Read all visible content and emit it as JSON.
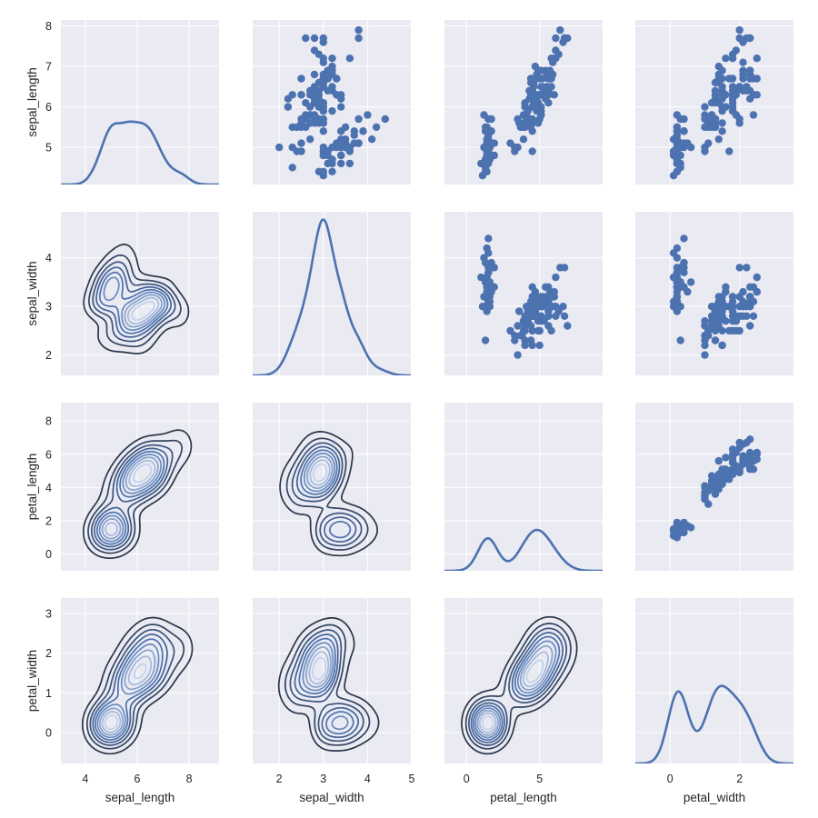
{
  "chart_data": {
    "type": "pairplot",
    "upper": "scatter",
    "diag": "kde",
    "lower": "kde-contour",
    "grid": true,
    "colors": {
      "background": "#eaeaf2",
      "grid": "#ffffff",
      "points": "#4c72b0",
      "diag_line": "#4c72b0",
      "contour_low": "#2b3648",
      "contour_mid": "#4c72b0",
      "contour_high": "#c2d2ea"
    },
    "variables": [
      "sepal_length",
      "sepal_width",
      "petal_length",
      "petal_width"
    ],
    "axes": [
      {
        "name": "sepal_length",
        "xlim": [
          3.06,
          9.15
        ],
        "ylim": [
          4.08,
          8.15
        ],
        "xticks": [
          4,
          6,
          8
        ],
        "yticks": [
          5,
          6,
          7,
          8
        ]
      },
      {
        "name": "sepal_width",
        "xlim": [
          1.4,
          4.98
        ],
        "ylim": [
          1.58,
          4.95
        ],
        "xticks": [
          2,
          3,
          4,
          5
        ],
        "yticks": [
          2,
          3,
          4
        ]
      },
      {
        "name": "petal_length",
        "xlim": [
          -1.5,
          9.3
        ],
        "ylim": [
          -1.0,
          9.1
        ],
        "xticks": [
          0,
          5
        ],
        "yticks": [
          0,
          2,
          4,
          6,
          8
        ]
      },
      {
        "name": "petal_width",
        "xlim": [
          -1.0,
          3.55
        ],
        "ylim": [
          -0.78,
          3.39
        ],
        "xticks": [
          0,
          2
        ],
        "yticks": [
          0,
          1,
          2,
          3
        ]
      }
    ],
    "rows": [
      [
        5.1,
        3.5,
        1.4,
        0.2
      ],
      [
        4.9,
        3.0,
        1.4,
        0.2
      ],
      [
        4.7,
        3.2,
        1.3,
        0.2
      ],
      [
        4.6,
        3.1,
        1.5,
        0.2
      ],
      [
        5.0,
        3.6,
        1.4,
        0.2
      ],
      [
        5.4,
        3.9,
        1.7,
        0.4
      ],
      [
        4.6,
        3.4,
        1.4,
        0.3
      ],
      [
        5.0,
        3.4,
        1.5,
        0.2
      ],
      [
        4.4,
        2.9,
        1.4,
        0.2
      ],
      [
        4.9,
        3.1,
        1.5,
        0.1
      ],
      [
        5.4,
        3.7,
        1.5,
        0.2
      ],
      [
        4.8,
        3.4,
        1.6,
        0.2
      ],
      [
        4.8,
        3.0,
        1.4,
        0.1
      ],
      [
        4.3,
        3.0,
        1.1,
        0.1
      ],
      [
        5.8,
        4.0,
        1.2,
        0.2
      ],
      [
        5.7,
        4.4,
        1.5,
        0.4
      ],
      [
        5.4,
        3.9,
        1.3,
        0.4
      ],
      [
        5.1,
        3.5,
        1.4,
        0.3
      ],
      [
        5.7,
        3.8,
        1.7,
        0.3
      ],
      [
        5.1,
        3.8,
        1.5,
        0.3
      ],
      [
        5.4,
        3.4,
        1.7,
        0.2
      ],
      [
        5.1,
        3.7,
        1.5,
        0.4
      ],
      [
        4.6,
        3.6,
        1.0,
        0.2
      ],
      [
        5.1,
        3.3,
        1.7,
        0.5
      ],
      [
        4.8,
        3.4,
        1.9,
        0.2
      ],
      [
        5.0,
        3.0,
        1.6,
        0.2
      ],
      [
        5.0,
        3.4,
        1.6,
        0.4
      ],
      [
        5.2,
        3.5,
        1.5,
        0.2
      ],
      [
        5.2,
        3.4,
        1.4,
        0.2
      ],
      [
        4.7,
        3.2,
        1.6,
        0.2
      ],
      [
        4.8,
        3.1,
        1.6,
        0.2
      ],
      [
        5.4,
        3.4,
        1.5,
        0.4
      ],
      [
        5.2,
        4.1,
        1.5,
        0.1
      ],
      [
        5.5,
        4.2,
        1.4,
        0.2
      ],
      [
        4.9,
        3.1,
        1.5,
        0.2
      ],
      [
        5.0,
        3.2,
        1.2,
        0.2
      ],
      [
        5.5,
        3.5,
        1.3,
        0.2
      ],
      [
        4.9,
        3.6,
        1.4,
        0.1
      ],
      [
        4.4,
        3.0,
        1.3,
        0.2
      ],
      [
        5.1,
        3.4,
        1.5,
        0.2
      ],
      [
        5.0,
        3.5,
        1.3,
        0.3
      ],
      [
        4.5,
        2.3,
        1.3,
        0.3
      ],
      [
        4.4,
        3.2,
        1.3,
        0.2
      ],
      [
        5.0,
        3.5,
        1.6,
        0.6
      ],
      [
        5.1,
        3.8,
        1.9,
        0.4
      ],
      [
        4.8,
        3.0,
        1.4,
        0.3
      ],
      [
        5.1,
        3.8,
        1.6,
        0.2
      ],
      [
        4.6,
        3.2,
        1.4,
        0.2
      ],
      [
        5.3,
        3.7,
        1.5,
        0.2
      ],
      [
        5.0,
        3.3,
        1.4,
        0.2
      ],
      [
        7.0,
        3.2,
        4.7,
        1.4
      ],
      [
        6.4,
        3.2,
        4.5,
        1.5
      ],
      [
        6.9,
        3.1,
        4.9,
        1.5
      ],
      [
        5.5,
        2.3,
        4.0,
        1.3
      ],
      [
        6.5,
        2.8,
        4.6,
        1.5
      ],
      [
        5.7,
        2.8,
        4.5,
        1.3
      ],
      [
        6.3,
        3.3,
        4.7,
        1.6
      ],
      [
        4.9,
        2.4,
        3.3,
        1.0
      ],
      [
        6.6,
        2.9,
        4.6,
        1.3
      ],
      [
        5.2,
        2.7,
        3.9,
        1.4
      ],
      [
        5.0,
        2.0,
        3.5,
        1.0
      ],
      [
        5.9,
        3.0,
        4.2,
        1.5
      ],
      [
        6.0,
        2.2,
        4.0,
        1.0
      ],
      [
        6.1,
        2.9,
        4.7,
        1.4
      ],
      [
        5.6,
        2.9,
        3.6,
        1.3
      ],
      [
        6.7,
        3.1,
        4.4,
        1.4
      ],
      [
        5.6,
        3.0,
        4.5,
        1.5
      ],
      [
        5.8,
        2.7,
        4.1,
        1.0
      ],
      [
        6.2,
        2.2,
        4.5,
        1.5
      ],
      [
        5.6,
        2.5,
        3.9,
        1.1
      ],
      [
        5.9,
        3.2,
        4.8,
        1.8
      ],
      [
        6.1,
        2.8,
        4.0,
        1.3
      ],
      [
        6.3,
        2.5,
        4.9,
        1.5
      ],
      [
        6.1,
        2.8,
        4.7,
        1.2
      ],
      [
        6.4,
        2.9,
        4.3,
        1.3
      ],
      [
        6.6,
        3.0,
        4.4,
        1.4
      ],
      [
        6.8,
        2.8,
        4.8,
        1.4
      ],
      [
        6.7,
        3.0,
        5.0,
        1.7
      ],
      [
        6.0,
        2.9,
        4.5,
        1.5
      ],
      [
        5.7,
        2.6,
        3.5,
        1.0
      ],
      [
        5.5,
        2.4,
        3.8,
        1.1
      ],
      [
        5.5,
        2.4,
        3.7,
        1.0
      ],
      [
        5.8,
        2.7,
        3.9,
        1.2
      ],
      [
        6.0,
        2.7,
        5.1,
        1.6
      ],
      [
        5.4,
        3.0,
        4.5,
        1.5
      ],
      [
        6.0,
        3.4,
        4.5,
        1.6
      ],
      [
        6.7,
        3.1,
        4.7,
        1.5
      ],
      [
        6.3,
        2.3,
        4.4,
        1.3
      ],
      [
        5.6,
        3.0,
        4.1,
        1.3
      ],
      [
        5.5,
        2.5,
        4.0,
        1.3
      ],
      [
        5.5,
        2.6,
        4.4,
        1.2
      ],
      [
        6.1,
        3.0,
        4.6,
        1.4
      ],
      [
        5.8,
        2.6,
        4.0,
        1.2
      ],
      [
        5.0,
        2.3,
        3.3,
        1.0
      ],
      [
        5.6,
        2.7,
        4.2,
        1.3
      ],
      [
        5.7,
        3.0,
        4.2,
        1.2
      ],
      [
        5.7,
        2.9,
        4.2,
        1.3
      ],
      [
        6.2,
        2.9,
        4.3,
        1.3
      ],
      [
        5.1,
        2.5,
        3.0,
        1.1
      ],
      [
        5.7,
        2.8,
        4.1,
        1.3
      ],
      [
        6.3,
        3.3,
        6.0,
        2.5
      ],
      [
        5.8,
        2.7,
        5.1,
        1.9
      ],
      [
        7.1,
        3.0,
        5.9,
        2.1
      ],
      [
        6.3,
        2.9,
        5.6,
        1.8
      ],
      [
        6.5,
        3.0,
        5.8,
        2.2
      ],
      [
        7.6,
        3.0,
        6.6,
        2.1
      ],
      [
        4.9,
        2.5,
        4.5,
        1.7
      ],
      [
        7.3,
        2.9,
        6.3,
        1.8
      ],
      [
        6.7,
        2.5,
        5.8,
        1.8
      ],
      [
        7.2,
        3.6,
        6.1,
        2.5
      ],
      [
        6.5,
        3.2,
        5.1,
        2.0
      ],
      [
        6.4,
        2.7,
        5.3,
        1.9
      ],
      [
        6.8,
        3.0,
        5.5,
        2.1
      ],
      [
        5.7,
        2.5,
        5.0,
        2.0
      ],
      [
        5.8,
        2.8,
        5.1,
        2.4
      ],
      [
        6.4,
        3.2,
        5.3,
        2.3
      ],
      [
        6.5,
        3.0,
        5.5,
        1.8
      ],
      [
        7.7,
        3.8,
        6.7,
        2.2
      ],
      [
        7.7,
        2.6,
        6.9,
        2.3
      ],
      [
        6.0,
        2.2,
        5.0,
        1.5
      ],
      [
        6.9,
        3.2,
        5.7,
        2.3
      ],
      [
        5.6,
        2.8,
        4.9,
        2.0
      ],
      [
        7.7,
        2.8,
        6.7,
        2.0
      ],
      [
        6.3,
        2.7,
        4.9,
        1.8
      ],
      [
        6.7,
        3.3,
        5.7,
        2.1
      ],
      [
        7.2,
        3.2,
        6.0,
        1.8
      ],
      [
        6.2,
        2.8,
        4.8,
        1.8
      ],
      [
        6.1,
        3.0,
        4.9,
        1.8
      ],
      [
        6.4,
        2.8,
        5.6,
        2.1
      ],
      [
        7.2,
        3.0,
        5.8,
        1.6
      ],
      [
        7.4,
        2.8,
        6.1,
        1.9
      ],
      [
        7.9,
        3.8,
        6.4,
        2.0
      ],
      [
        6.4,
        2.8,
        5.6,
        2.2
      ],
      [
        6.3,
        2.8,
        5.1,
        1.5
      ],
      [
        6.1,
        2.6,
        5.6,
        1.4
      ],
      [
        7.7,
        3.0,
        6.1,
        2.3
      ],
      [
        6.3,
        3.4,
        5.6,
        2.4
      ],
      [
        6.4,
        3.1,
        5.5,
        1.8
      ],
      [
        6.0,
        3.0,
        4.8,
        1.8
      ],
      [
        6.9,
        3.1,
        5.4,
        2.1
      ],
      [
        6.7,
        3.1,
        5.6,
        2.4
      ],
      [
        6.9,
        3.1,
        5.1,
        2.3
      ],
      [
        5.8,
        2.7,
        5.1,
        1.9
      ],
      [
        6.8,
        3.2,
        5.9,
        2.3
      ],
      [
        6.7,
        3.3,
        5.7,
        2.5
      ],
      [
        6.7,
        3.0,
        5.2,
        2.3
      ],
      [
        6.3,
        2.5,
        5.0,
        1.9
      ],
      [
        6.5,
        3.0,
        5.2,
        2.0
      ],
      [
        6.2,
        3.4,
        5.4,
        2.3
      ],
      [
        5.9,
        3.0,
        5.1,
        1.8
      ]
    ]
  }
}
